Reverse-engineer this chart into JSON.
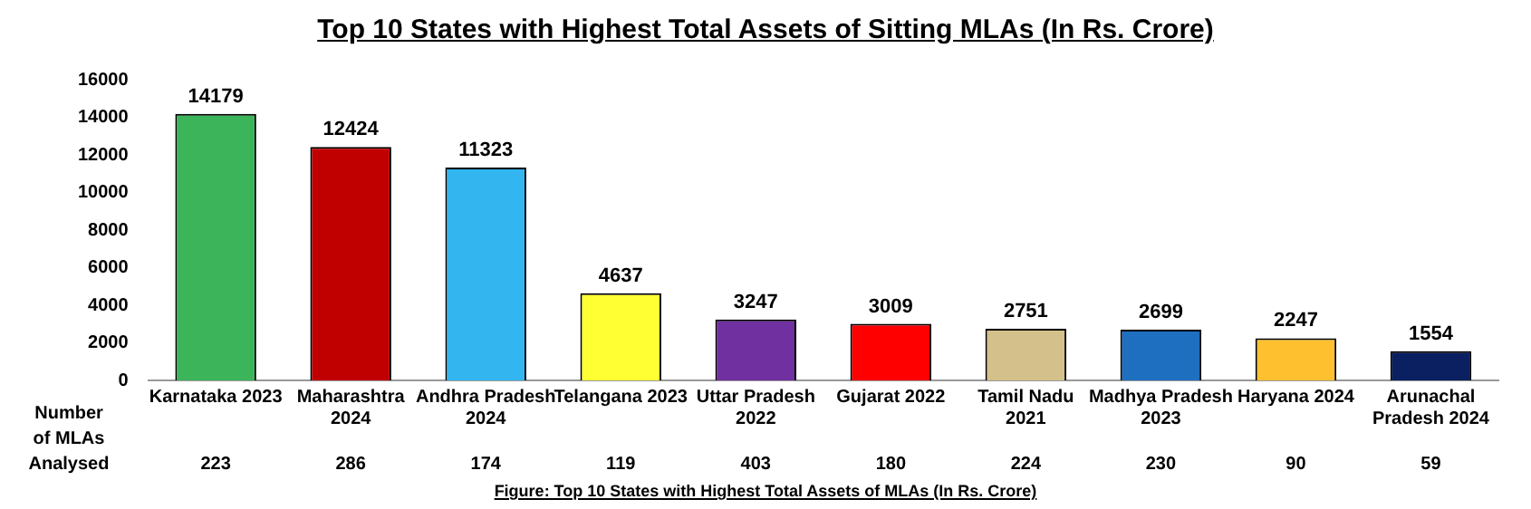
{
  "chart_data": {
    "type": "bar",
    "title": "Top 10 States with Highest Total Assets of Sitting MLAs (In Rs. Crore)",
    "categories": [
      "Karnataka 2023",
      "Maharashtra 2024",
      "Andhra Pradesh 2024",
      "Telangana 2023",
      "Uttar Pradesh 2022",
      "Gujarat 2022",
      "Tamil Nadu 2021",
      "Madhya Pradesh 2023",
      "Haryana 2024",
      "Arunachal Pradesh 2024"
    ],
    "values": [
      14179,
      12424,
      11323,
      4637,
      3247,
      3009,
      2751,
      2699,
      2247,
      1554
    ],
    "colors": [
      "#3cb55a",
      "#c00000",
      "#33b5f0",
      "#ffff33",
      "#7030a0",
      "#ff0000",
      "#d4c08a",
      "#1f6fc0",
      "#ffc030",
      "#0a2060"
    ],
    "ylim": [
      0,
      16000
    ],
    "yticks": [
      0,
      2000,
      4000,
      6000,
      8000,
      10000,
      12000,
      14000,
      16000
    ],
    "grid": false,
    "legend": false,
    "data_labels": true,
    "annotations": [
      "Number of MLAs Analysed",
      "223",
      "286",
      "174",
      "119",
      "403",
      "180",
      "224",
      "230",
      "90",
      "59",
      "Figure: Top 10 States with Highest Total Assets of MLAs (In Rs. Crore)"
    ]
  }
}
